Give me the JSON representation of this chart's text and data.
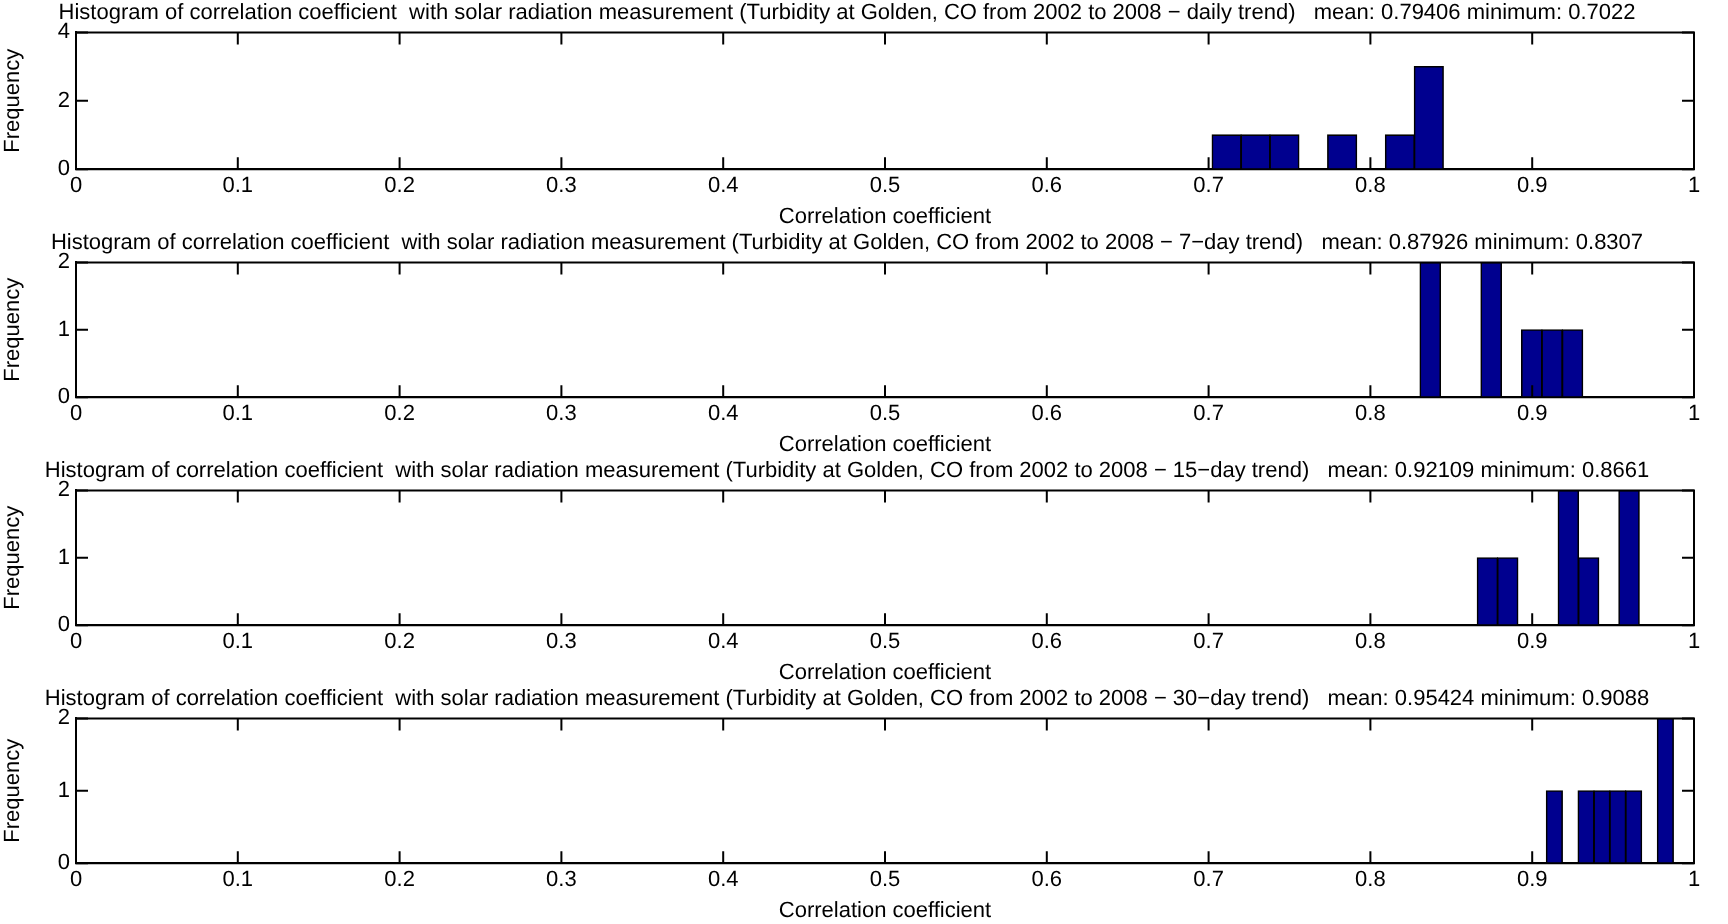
{
  "chart_data": [
    {
      "type": "histogram",
      "title": "Histogram of correlation coefficient  with solar radiation measurement (Turbidity at Golden, CO from 2002 to 2008 − daily trend)   mean: 0.79406 minimum: 0.7022",
      "xlabel": "Correlation coefficient",
      "ylabel": "Frequency",
      "color": "#00008f",
      "bins": [
        0.7022,
        0.7201,
        0.7379,
        0.7558,
        0.7736,
        0.7915,
        0.8093,
        0.8272,
        0.845
      ],
      "values": [
        1,
        1,
        1,
        0,
        1,
        0,
        1,
        3
      ],
      "xlim": [
        0,
        1
      ],
      "xticks": [
        0,
        0.1,
        0.2,
        0.3,
        0.4,
        0.5,
        0.6,
        0.7,
        0.8,
        0.9,
        1
      ],
      "ylim": [
        0,
        4
      ],
      "yticks": [
        0,
        2,
        4
      ]
    },
    {
      "type": "histogram",
      "title": "Histogram of correlation coefficient  with solar radiation measurement (Turbidity at Golden, CO from 2002 to 2008 − 7−day trend)   mean: 0.87926 minimum: 0.8307",
      "xlabel": "Correlation coefficient",
      "ylabel": "Frequency",
      "color": "#00008f",
      "bins": [
        0.8307,
        0.8433,
        0.8558,
        0.8684,
        0.8809,
        0.8935,
        0.906,
        0.9186,
        0.9312
      ],
      "values": [
        2,
        0,
        0,
        2,
        0,
        1,
        1,
        1
      ],
      "xlim": [
        0,
        1
      ],
      "xticks": [
        0,
        0.1,
        0.2,
        0.3,
        0.4,
        0.5,
        0.6,
        0.7,
        0.8,
        0.9,
        1
      ],
      "ylim": [
        0,
        2
      ],
      "yticks": [
        0,
        1,
        2
      ]
    },
    {
      "type": "histogram",
      "title": "Histogram of correlation coefficient  with solar radiation measurement (Turbidity at Golden, CO from 2002 to 2008 − 15−day trend)   mean: 0.92109 minimum: 0.8661",
      "xlabel": "Correlation coefficient",
      "ylabel": "Frequency",
      "color": "#00008f",
      "bins": [
        0.8661,
        0.8786,
        0.8911,
        0.9036,
        0.9161,
        0.9286,
        0.9411,
        0.9536,
        0.9661
      ],
      "values": [
        1,
        1,
        0,
        0,
        2,
        1,
        0,
        2
      ],
      "xlim": [
        0,
        1
      ],
      "xticks": [
        0,
        0.1,
        0.2,
        0.3,
        0.4,
        0.5,
        0.6,
        0.7,
        0.8,
        0.9,
        1
      ],
      "ylim": [
        0,
        2
      ],
      "yticks": [
        0,
        1,
        2
      ]
    },
    {
      "type": "histogram",
      "title": "Histogram of correlation coefficient  with solar radiation measurement (Turbidity at Golden, CO from 2002 to 2008 − 30−day trend)   mean: 0.95424 minimum: 0.9088",
      "xlabel": "Correlation coefficient",
      "ylabel": "Frequency",
      "color": "#00008f",
      "bins": [
        0.9088,
        0.9186,
        0.9284,
        0.9382,
        0.948,
        0.9578,
        0.9676,
        0.9774,
        0.9872
      ],
      "values": [
        1,
        0,
        1,
        1,
        1,
        1,
        0,
        2
      ],
      "xlim": [
        0,
        1
      ],
      "xticks": [
        0,
        0.1,
        0.2,
        0.3,
        0.4,
        0.5,
        0.6,
        0.7,
        0.8,
        0.9,
        1
      ],
      "ylim": [
        0,
        2
      ],
      "yticks": [
        0,
        1,
        2
      ]
    }
  ]
}
